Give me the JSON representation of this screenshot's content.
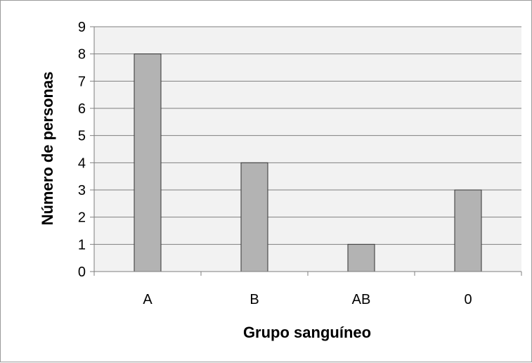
{
  "chart_data": {
    "type": "bar",
    "title": "",
    "xlabel": "Grupo sanguíneo",
    "ylabel": "Número de personas",
    "categories": [
      "A",
      "B",
      "AB",
      "0"
    ],
    "values": [
      8,
      4,
      1,
      3
    ],
    "ylim": [
      0,
      9
    ],
    "yticks": [
      0,
      1,
      2,
      3,
      4,
      5,
      6,
      7,
      8,
      9
    ],
    "grid": true,
    "legend": "none",
    "colors": {
      "bar_fill": "#b3b3b3",
      "bar_stroke": "#333333",
      "plot_background": "#f2f2f2",
      "gridline": "#7f7f7f",
      "axis": "#7f7f7f"
    }
  }
}
